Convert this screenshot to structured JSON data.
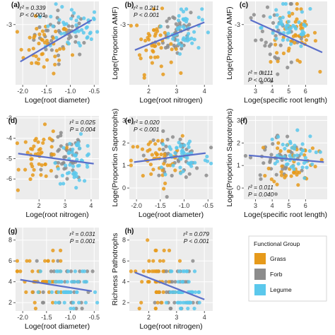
{
  "colors": {
    "grass": "#E69A1B",
    "forb": "#8C8C8C",
    "legume": "#5BC8EC",
    "fit": "#5B6FC9",
    "panel": "#ECECEC"
  },
  "legend": {
    "title": "Functional Group",
    "items": [
      {
        "key": "grass",
        "label": "Grass"
      },
      {
        "key": "forb",
        "label": "Forb"
      },
      {
        "key": "legume",
        "label": "Legume"
      }
    ]
  },
  "chart_data": [
    {
      "id": "a",
      "type": "scatter",
      "panel_label": "(a)",
      "xlabel": "Loge(root diameter)",
      "ylabel": "",
      "xlim": [
        -2.15,
        -0.4
      ],
      "ylim": [
        -5.6,
        -2.0
      ],
      "xticks": [
        -2.0,
        -1.5,
        -1.0,
        -0.5
      ],
      "xtick_labels": [
        "-2.0",
        "-1.5",
        "-1.0",
        "-0.5"
      ],
      "yticks": [
        -3
      ],
      "ytick_labels": [
        "-3"
      ],
      "stats": {
        "r2": "r² = 0.339",
        "p": "P < 0.001",
        "corner": "top-left"
      },
      "fit": {
        "x": [
          -2.05,
          -0.55
        ],
        "y": [
          -4.6,
          -2.8
        ]
      },
      "groups": {
        "grass": {
          "xmean": -1.55,
          "xsd": 0.28,
          "ymean": -4.0,
          "ysd": 0.55
        },
        "forb": {
          "xmean": -1.15,
          "xsd": 0.3,
          "ymean": -3.4,
          "ysd": 0.5
        },
        "legume": {
          "xmean": -0.95,
          "xsd": 0.3,
          "ymean": -3.2,
          "ysd": 0.5
        }
      }
    },
    {
      "id": "b",
      "type": "scatter",
      "panel_label": "(b)",
      "xlabel": "Loge(root nitrogen)",
      "ylabel": "Loge(Proportion AMF)",
      "xlim": [
        1.3,
        4.3
      ],
      "ylim": [
        -5.6,
        -2.0
      ],
      "xticks": [
        2,
        3,
        4
      ],
      "xtick_labels": [
        "2",
        "3",
        "4"
      ],
      "yticks": [
        -3
      ],
      "ytick_labels": [
        "-3"
      ],
      "stats": {
        "r2": "r² = 0.211",
        "p": "P < 0.001",
        "corner": "top-left"
      },
      "fit": {
        "x": [
          1.5,
          4.0
        ],
        "y": [
          -4.1,
          -2.9
        ]
      },
      "groups": {
        "grass": {
          "xmean": 2.2,
          "xsd": 0.35,
          "ymean": -3.8,
          "ysd": 0.65
        },
        "forb": {
          "xmean": 3.0,
          "xsd": 0.35,
          "ymean": -3.3,
          "ysd": 0.55
        },
        "legume": {
          "xmean": 3.3,
          "xsd": 0.3,
          "ymean": -3.2,
          "ysd": 0.5
        }
      }
    },
    {
      "id": "c",
      "type": "scatter",
      "panel_label": "(c)",
      "xlabel": "Loge(specific root length)",
      "ylabel": "Loge(Proportion AMF)",
      "xlim": [
        2.3,
        7.3
      ],
      "ylim": [
        -5.6,
        -2.0
      ],
      "xticks": [
        3,
        4,
        5,
        6
      ],
      "xtick_labels": [
        "3",
        "4",
        "5",
        "6"
      ],
      "yticks": [
        -3
      ],
      "ytick_labels": [
        "-3"
      ],
      "stats": {
        "r2": "r² = 0.111",
        "p": "P < 0.001",
        "corner": "bottom-left"
      },
      "fit": {
        "x": [
          2.7,
          7.0
        ],
        "y": [
          -2.8,
          -4.2
        ]
      },
      "groups": {
        "grass": {
          "xmean": 5.3,
          "xsd": 0.7,
          "ymean": -3.5,
          "ysd": 0.6
        },
        "forb": {
          "xmean": 4.3,
          "xsd": 0.9,
          "ymean": -3.6,
          "ysd": 0.7
        },
        "legume": {
          "xmean": 5.0,
          "xsd": 0.8,
          "ymean": -3.1,
          "ysd": 0.5
        }
      }
    },
    {
      "id": "d",
      "type": "scatter",
      "panel_label": "(d)",
      "xlabel": "Loge(root nitrogen)",
      "ylabel": "",
      "xlim": [
        1.1,
        4.3
      ],
      "ylim": [
        -7.0,
        -2.9
      ],
      "xticks": [
        2,
        3,
        4
      ],
      "xtick_labels": [
        "2",
        "3",
        "4"
      ],
      "yticks": [
        -3,
        -4,
        -5,
        -6
      ],
      "ytick_labels": [
        "-3",
        "-4",
        "-5",
        "-6"
      ],
      "stats": {
        "r2": "r² = 0.025",
        "p": "P = 0.004",
        "corner": "top-right"
      },
      "fit": {
        "x": [
          1.2,
          4.1
        ],
        "y": [
          -4.75,
          -5.25
        ]
      },
      "groups": {
        "grass": {
          "xmean": 2.1,
          "xsd": 0.4,
          "ymean": -4.9,
          "ysd": 0.65
        },
        "forb": {
          "xmean": 3.0,
          "xsd": 0.35,
          "ymean": -5.0,
          "ysd": 0.6
        },
        "legume": {
          "xmean": 3.4,
          "xsd": 0.35,
          "ymean": -5.1,
          "ysd": 0.55
        }
      }
    },
    {
      "id": "e",
      "type": "scatter",
      "panel_label": "(e)",
      "xlabel": "Loge(root diameter)",
      "ylabel": "Loge(Proportion Saprotrophs)",
      "xlim": [
        -2.15,
        -0.4
      ],
      "ylim": [
        -0.5,
        3.2
      ],
      "xticks": [
        -2.0,
        -1.5,
        -1.0,
        -0.5
      ],
      "xtick_labels": [
        "-2.0",
        "-1.5",
        "-1.0",
        "-0.5"
      ],
      "yticks": [
        0,
        1,
        2,
        3
      ],
      "ytick_labels": [
        "0",
        "1",
        "2",
        "3"
      ],
      "stats": {
        "r2": "r² = 0.020",
        "p": "P < 0.001",
        "corner": "top-left"
      },
      "fit": {
        "x": [
          -2.05,
          -0.55
        ],
        "y": [
          1.15,
          1.55
        ]
      },
      "groups": {
        "grass": {
          "xmean": -1.6,
          "xsd": 0.28,
          "ymean": 1.2,
          "ysd": 0.55
        },
        "forb": {
          "xmean": -1.2,
          "xsd": 0.28,
          "ymean": 1.4,
          "ysd": 0.5
        },
        "legume": {
          "xmean": -1.0,
          "xsd": 0.28,
          "ymean": 1.4,
          "ysd": 0.5
        }
      }
    },
    {
      "id": "f",
      "type": "scatter",
      "panel_label": "(f)",
      "xlabel": "Loge(specific root length)",
      "ylabel": "Loge(Proportion Saprotrophs)",
      "xlim": [
        2.3,
        7.3
      ],
      "ylim": [
        -0.5,
        3.2
      ],
      "xticks": [
        3,
        4,
        5,
        6
      ],
      "xtick_labels": [
        "3",
        "4",
        "5",
        "6"
      ],
      "yticks": [
        0,
        1,
        2,
        3
      ],
      "ytick_labels": [
        "0",
        "1",
        "2",
        "3"
      ],
      "stats": {
        "r2": "r² = 0.011",
        "p": "P = 0.040",
        "corner": "bottom-left"
      },
      "fit": {
        "x": [
          2.6,
          7.1
        ],
        "y": [
          1.45,
          1.15
        ]
      },
      "groups": {
        "grass": {
          "xmean": 5.3,
          "xsd": 0.7,
          "ymean": 1.2,
          "ysd": 0.55
        },
        "forb": {
          "xmean": 4.4,
          "xsd": 0.9,
          "ymean": 1.3,
          "ysd": 0.55
        },
        "legume": {
          "xmean": 5.0,
          "xsd": 0.8,
          "ymean": 1.4,
          "ysd": 0.5
        }
      }
    },
    {
      "id": "g",
      "type": "scatter",
      "panel_label": "(g)",
      "xlabel": "Loge(root diameter)",
      "ylabel": "",
      "xlim": [
        -2.15,
        -0.4
      ],
      "ylim": [
        1.2,
        9.2
      ],
      "xticks": [
        -2.0,
        -1.5,
        -1.0,
        -0.5
      ],
      "xtick_labels": [
        "-2.0",
        "-1.5",
        "-1.0",
        "-0.5"
      ],
      "yticks": [
        2,
        4,
        6,
        8
      ],
      "ytick_labels": [
        "2",
        "4",
        "6",
        "8"
      ],
      "stats": {
        "r2": "r² = 0.031",
        "p": "P = 0.001",
        "corner": "top-right"
      },
      "fit": {
        "x": [
          -2.05,
          -0.55
        ],
        "y": [
          4.2,
          3.1
        ]
      },
      "integer_y": true,
      "groups": {
        "grass": {
          "xmean": -1.6,
          "xsd": 0.28,
          "ymean": 4.2,
          "ysd": 1.5
        },
        "forb": {
          "xmean": -1.2,
          "xsd": 0.3,
          "ymean": 3.5,
          "ysd": 1.3
        },
        "legume": {
          "xmean": -1.0,
          "xsd": 0.3,
          "ymean": 3.2,
          "ysd": 1.2
        }
      }
    },
    {
      "id": "h",
      "type": "scatter",
      "panel_label": "(h)",
      "xlabel": "Loge(root nitrogen)",
      "ylabel": "Richness Pathotrophs",
      "xlim": [
        1.3,
        4.3
      ],
      "ylim": [
        1.2,
        9.2
      ],
      "xticks": [
        2,
        3,
        4
      ],
      "xtick_labels": [
        "2",
        "3",
        "4"
      ],
      "yticks": [
        2,
        4,
        6,
        8
      ],
      "ytick_labels": [
        "2",
        "4",
        "6",
        "8"
      ],
      "stats": {
        "r2": "r² = 0.079",
        "p": "P < 0.001",
        "corner": "top-right"
      },
      "fit": {
        "x": [
          1.5,
          4.0
        ],
        "y": [
          4.9,
          2.3
        ]
      },
      "integer_y": true,
      "groups": {
        "grass": {
          "xmean": 2.2,
          "xsd": 0.35,
          "ymean": 4.3,
          "ysd": 1.5
        },
        "forb": {
          "xmean": 3.0,
          "xsd": 0.35,
          "ymean": 3.4,
          "ysd": 1.2
        },
        "legume": {
          "xmean": 3.3,
          "xsd": 0.3,
          "ymean": 3.0,
          "ysd": 1.1
        }
      }
    }
  ]
}
